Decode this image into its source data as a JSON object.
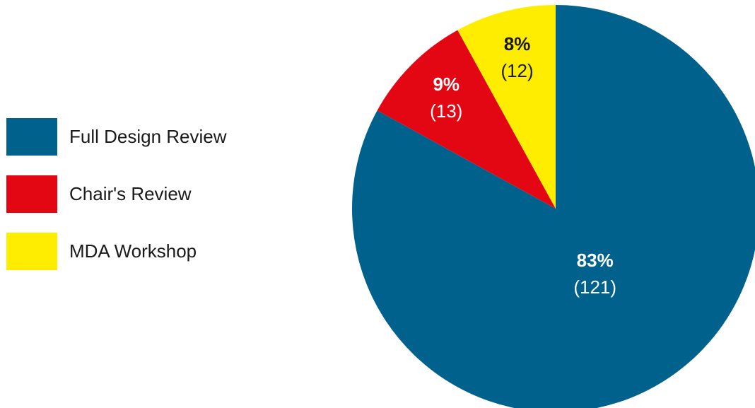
{
  "chart_data": {
    "type": "pie",
    "categories": [
      "Full Design Review",
      "Chair's Review",
      "MDA Workshop"
    ],
    "values": [
      83,
      9,
      8
    ],
    "value_labels": [
      "83%",
      "9%",
      "8%"
    ],
    "counts": [
      121,
      13,
      12
    ],
    "count_labels": [
      "(121)",
      "(13)",
      "(12)"
    ],
    "colors": [
      "#00628c",
      "#e30613",
      "#ffed00"
    ],
    "legend": "left"
  }
}
